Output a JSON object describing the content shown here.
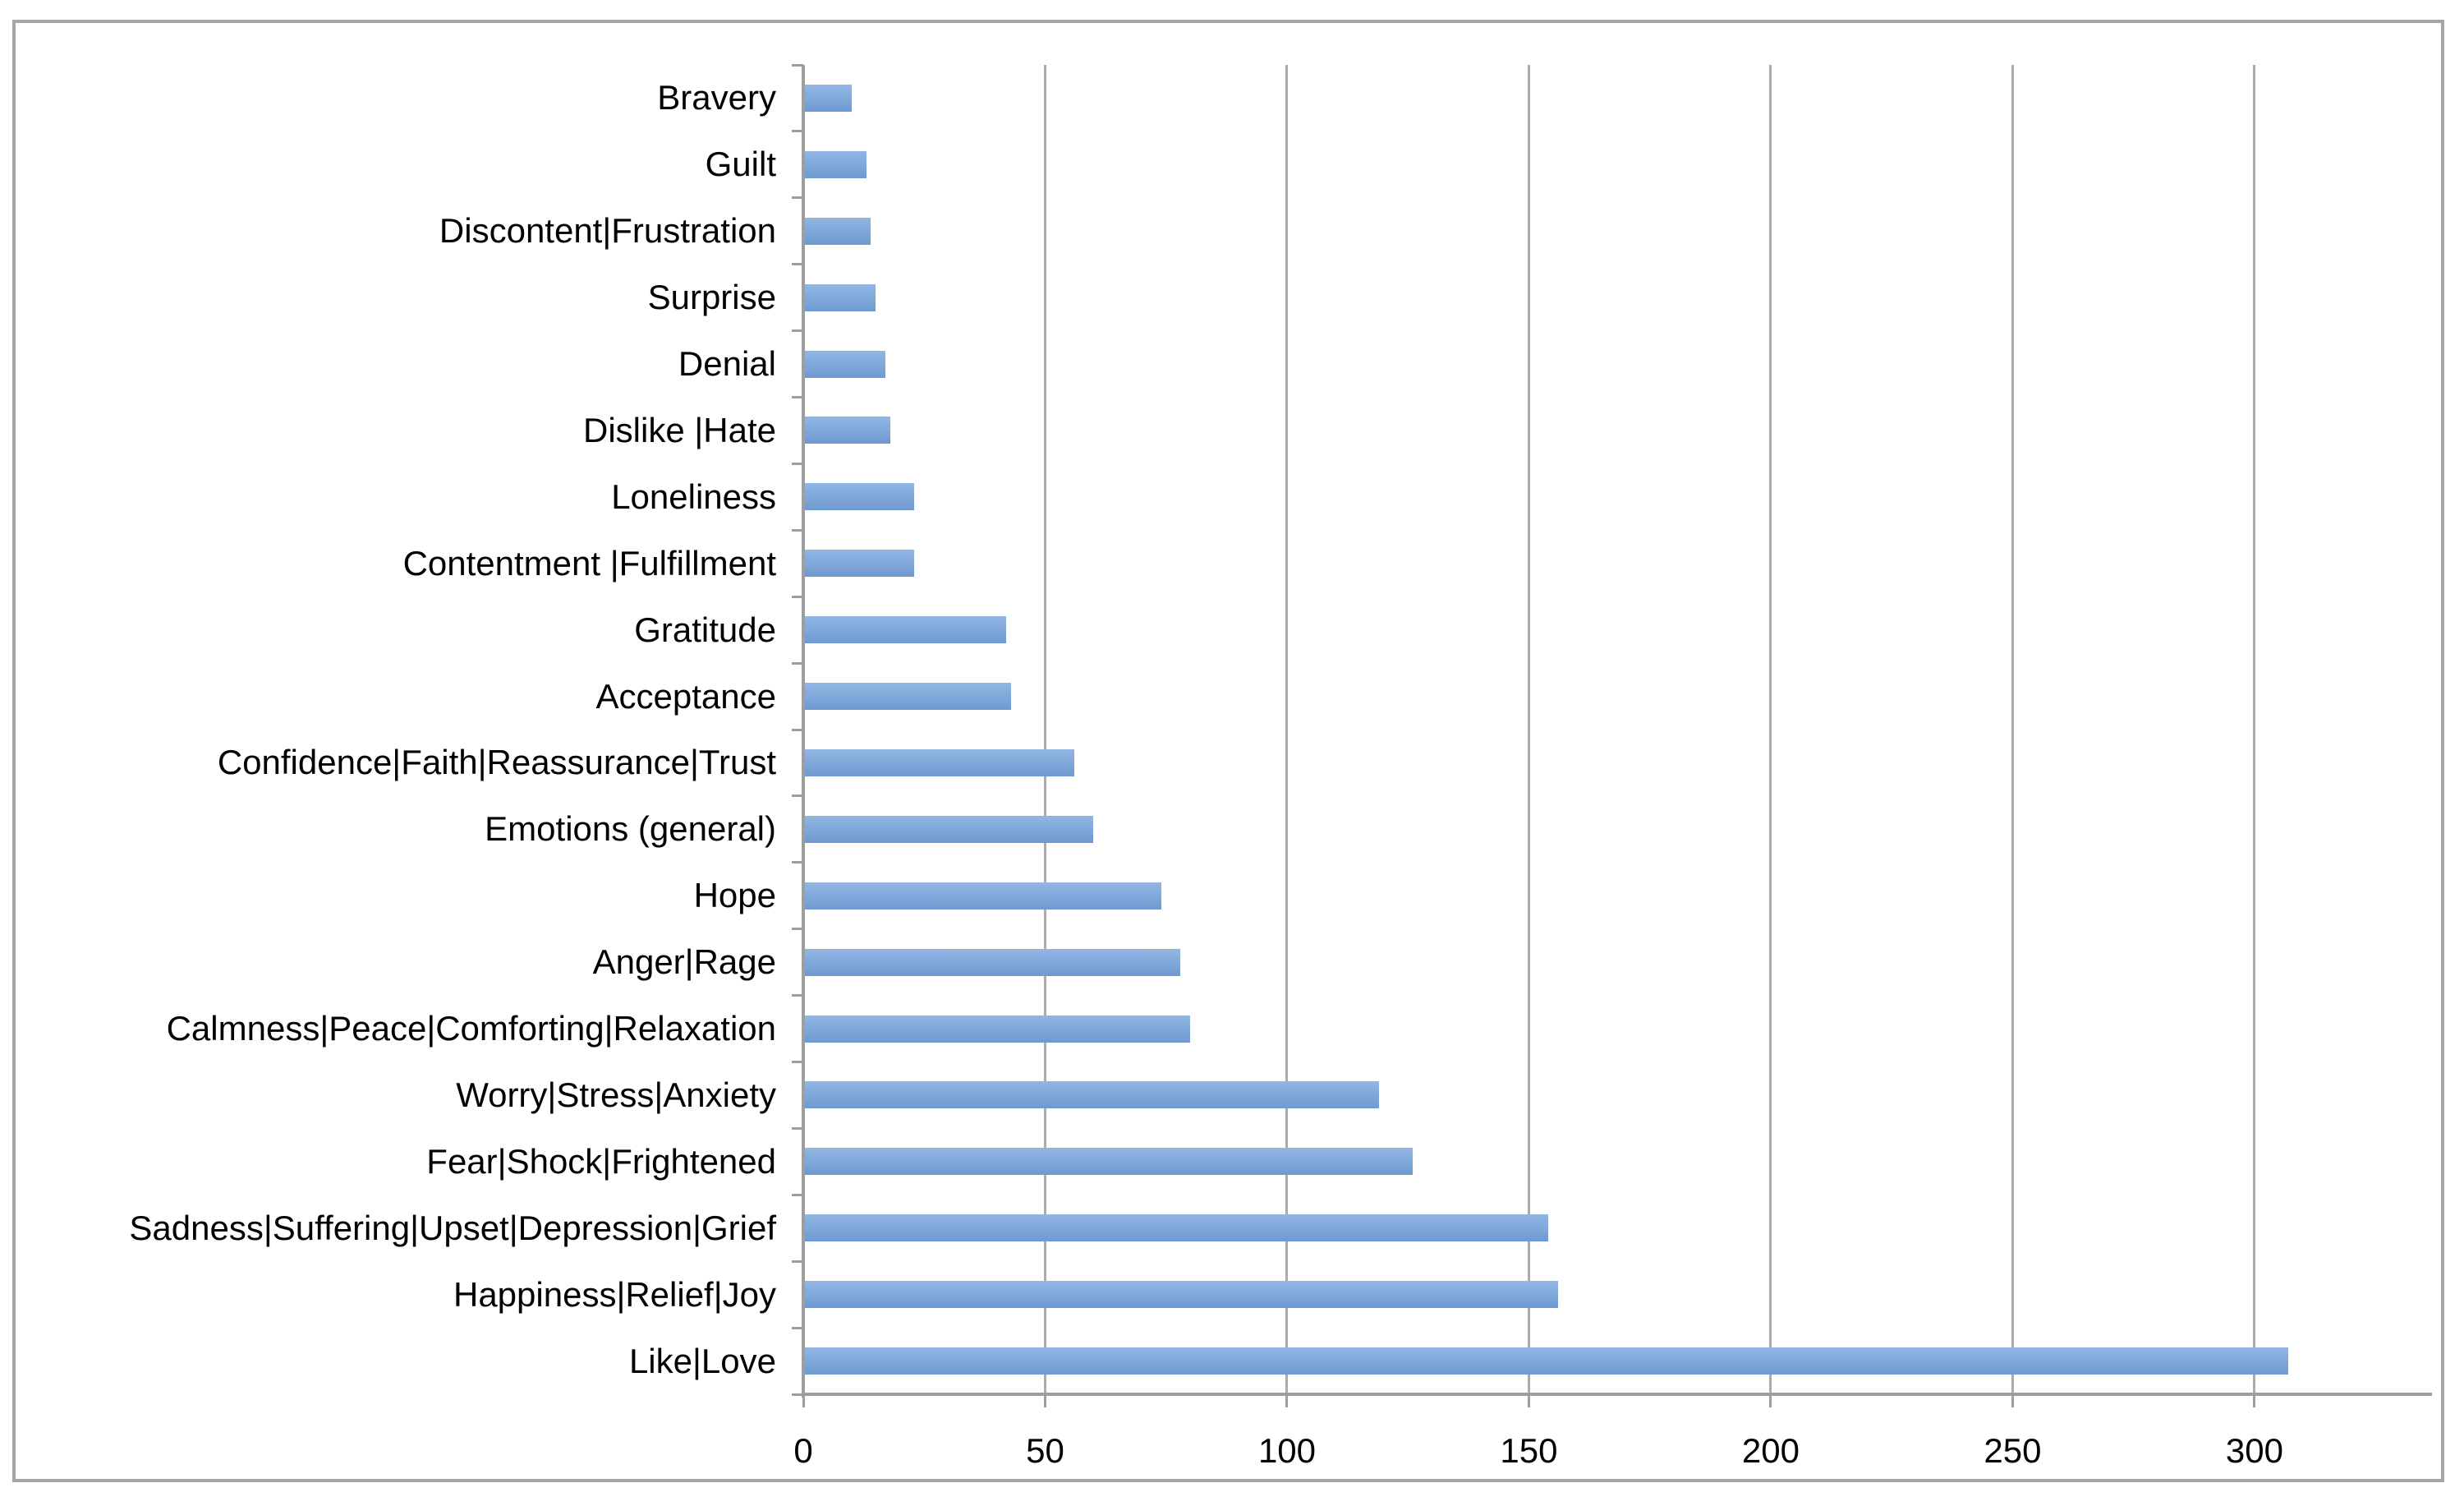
{
  "chart_data": {
    "type": "bar",
    "orientation": "horizontal",
    "title": "",
    "xlabel": "",
    "ylabel": "",
    "categories": [
      "Bravery",
      "Guilt",
      "Discontent|Frustration",
      "Surprise",
      "Denial",
      "Dislike |Hate",
      "Loneliness",
      "Contentment |Fulfillment",
      "Gratitude",
      "Acceptance",
      "Confidence|Faith|Reassurance|Trust",
      "Emotions (general)",
      "Hope",
      "Anger|Rage",
      "Calmness|Peace|Comforting|Relaxation",
      "Worry|Stress|Anxiety",
      "Fear|Shock|Frightened",
      "Sadness|Suffering|Upset|Depression|Grief",
      "Happiness|Relief|Joy",
      "Like|Love"
    ],
    "values": [
      10,
      13,
      14,
      15,
      17,
      18,
      23,
      23,
      42,
      43,
      56,
      60,
      74,
      78,
      80,
      119,
      126,
      154,
      156,
      307
    ],
    "xlim": [
      0,
      336
    ],
    "x_ticks": [
      0,
      50,
      100,
      150,
      200,
      250,
      300
    ],
    "grid": "vertical-only",
    "legend": "none",
    "colors": {
      "bar_gradient_top": "#93B6E3",
      "bar_gradient_bottom": "#6E9AD1",
      "gridline": "#ABABAB",
      "axis_line": "#9E9E9E",
      "tick_mark": "#9E9E9E",
      "frame_border": "#A6A6A6",
      "text": "#000000",
      "background": "#FFFFFF"
    }
  }
}
